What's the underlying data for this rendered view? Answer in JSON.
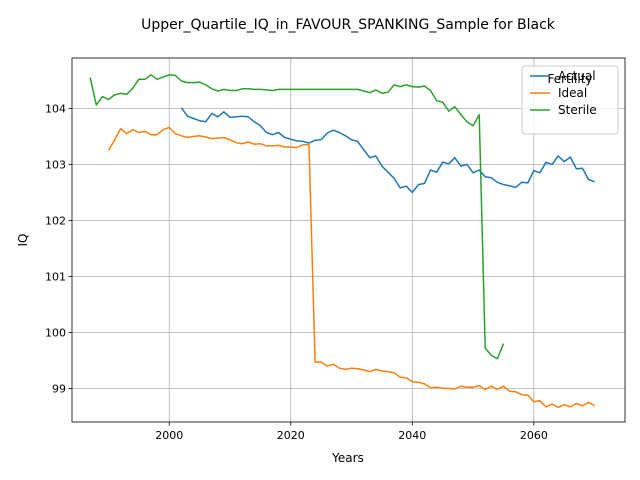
{
  "chart_data": {
    "type": "line",
    "title": "Upper_Quartile_IQ_in_FAVOUR_SPANKING_Sample for Black",
    "xlabel": "Years",
    "ylabel": "IQ",
    "xlim": [
      1984,
      2075
    ],
    "ylim": [
      98.4,
      104.9
    ],
    "xticks": [
      2000,
      2020,
      2040,
      2060
    ],
    "yticks": [
      99,
      100,
      101,
      102,
      103,
      104
    ],
    "grid": true,
    "legend": {
      "title": "Fertility",
      "position": "top-right"
    },
    "series": [
      {
        "name": "Actual",
        "color": "#1f77b4",
        "x": [
          2002,
          2003,
          2004,
          2005,
          2006,
          2007,
          2008,
          2009,
          2010,
          2011,
          2012,
          2013,
          2014,
          2015,
          2016,
          2017,
          2018,
          2019,
          2020,
          2021,
          2022,
          2023,
          2024,
          2025,
          2026,
          2027,
          2028,
          2029,
          2030,
          2031,
          2032,
          2033,
          2034,
          2035,
          2036,
          2037,
          2038,
          2039,
          2040,
          2041,
          2042,
          2043,
          2044,
          2045,
          2046,
          2047,
          2048,
          2049,
          2050,
          2051,
          2052,
          2053,
          2054,
          2055,
          2056,
          2057,
          2058,
          2059,
          2060,
          2061,
          2062,
          2063,
          2064,
          2065,
          2066,
          2067,
          2068,
          2069,
          2070
        ],
        "y": [
          104.01,
          103.86,
          103.82,
          103.78,
          103.76,
          103.91,
          103.85,
          103.94,
          103.84,
          103.85,
          103.86,
          103.85,
          103.76,
          103.69,
          103.57,
          103.53,
          103.57,
          103.48,
          103.45,
          103.42,
          103.41,
          103.38,
          103.43,
          103.44,
          103.56,
          103.61,
          103.57,
          103.51,
          103.44,
          103.41,
          103.26,
          103.12,
          103.15,
          102.97,
          102.86,
          102.75,
          102.58,
          102.61,
          102.5,
          102.64,
          102.66,
          102.9,
          102.86,
          103.04,
          103.01,
          103.12,
          102.97,
          103.0,
          102.85,
          102.9,
          102.78,
          102.76,
          102.68,
          102.64,
          102.62,
          102.59,
          102.68,
          102.67,
          102.89,
          102.85,
          103.04,
          103.0,
          103.15,
          103.05,
          103.13,
          102.92,
          102.93,
          102.73,
          102.69
        ]
      },
      {
        "name": "Ideal",
        "color": "#ff7f0e",
        "x": [
          1990,
          1991,
          1992,
          1993,
          1994,
          1995,
          1996,
          1997,
          1998,
          1999,
          2000,
          2001,
          2002,
          2003,
          2004,
          2005,
          2006,
          2007,
          2008,
          2009,
          2010,
          2011,
          2012,
          2013,
          2014,
          2015,
          2016,
          2017,
          2018,
          2019,
          2020,
          2021,
          2022,
          2023,
          2024,
          2025,
          2026,
          2027,
          2028,
          2029,
          2030,
          2031,
          2032,
          2033,
          2034,
          2035,
          2036,
          2037,
          2038,
          2039,
          2040,
          2041,
          2042,
          2043,
          2044,
          2045,
          2046,
          2047,
          2048,
          2049,
          2050,
          2051,
          2052,
          2053,
          2054,
          2055,
          2056,
          2057,
          2058,
          2059,
          2060,
          2061,
          2062,
          2063,
          2064,
          2065,
          2066,
          2067,
          2068,
          2069,
          2070
        ],
        "y": [
          103.25,
          103.43,
          103.64,
          103.55,
          103.62,
          103.57,
          103.59,
          103.53,
          103.53,
          103.62,
          103.66,
          103.55,
          103.51,
          103.48,
          103.5,
          103.51,
          103.49,
          103.46,
          103.47,
          103.48,
          103.44,
          103.39,
          103.37,
          103.4,
          103.36,
          103.37,
          103.33,
          103.33,
          103.34,
          103.31,
          103.31,
          103.3,
          103.35,
          103.35,
          99.47,
          99.47,
          99.4,
          99.43,
          99.36,
          99.34,
          99.36,
          99.35,
          99.33,
          99.3,
          99.34,
          99.31,
          99.3,
          99.28,
          99.2,
          99.19,
          99.12,
          99.11,
          99.08,
          99.01,
          99.02,
          99.0,
          99.0,
          98.99,
          99.04,
          99.02,
          99.02,
          99.05,
          98.98,
          99.04,
          98.98,
          99.04,
          98.95,
          98.94,
          98.89,
          98.88,
          98.76,
          98.78,
          98.67,
          98.72,
          98.66,
          98.71,
          98.67,
          98.73,
          98.69,
          98.75,
          98.69
        ]
      },
      {
        "name": "Sterile",
        "color": "#2ca02c",
        "x": [
          1987,
          1988,
          1989,
          1990,
          1991,
          1992,
          1993,
          1994,
          1995,
          1996,
          1997,
          1998,
          1999,
          2000,
          2001,
          2002,
          2003,
          2004,
          2005,
          2006,
          2007,
          2008,
          2009,
          2010,
          2011,
          2012,
          2013,
          2014,
          2015,
          2016,
          2017,
          2018,
          2019,
          2020,
          2021,
          2022,
          2023,
          2024,
          2025,
          2026,
          2027,
          2028,
          2029,
          2030,
          2031,
          2032,
          2033,
          2034,
          2035,
          2036,
          2037,
          2038,
          2039,
          2040,
          2041,
          2042,
          2043,
          2044,
          2045,
          2046,
          2047,
          2048,
          2049,
          2050,
          2051,
          2052,
          2053,
          2054,
          2055
        ],
        "y": [
          104.55,
          104.06,
          104.21,
          104.16,
          104.24,
          104.27,
          104.25,
          104.36,
          104.52,
          104.52,
          104.6,
          104.52,
          104.56,
          104.6,
          104.59,
          104.49,
          104.46,
          104.46,
          104.47,
          104.42,
          104.35,
          104.31,
          104.34,
          104.32,
          104.32,
          104.35,
          104.35,
          104.34,
          104.34,
          104.33,
          104.32,
          104.34,
          104.34,
          104.34,
          104.34,
          104.34,
          104.34,
          104.34,
          104.34,
          104.34,
          104.34,
          104.34,
          104.34,
          104.34,
          104.34,
          104.31,
          104.28,
          104.33,
          104.27,
          104.29,
          104.42,
          104.39,
          104.42,
          104.39,
          104.38,
          104.4,
          104.32,
          104.14,
          104.11,
          103.95,
          104.03,
          103.89,
          103.76,
          103.69,
          103.89,
          99.72,
          99.59,
          99.53,
          99.8
        ]
      }
    ]
  }
}
